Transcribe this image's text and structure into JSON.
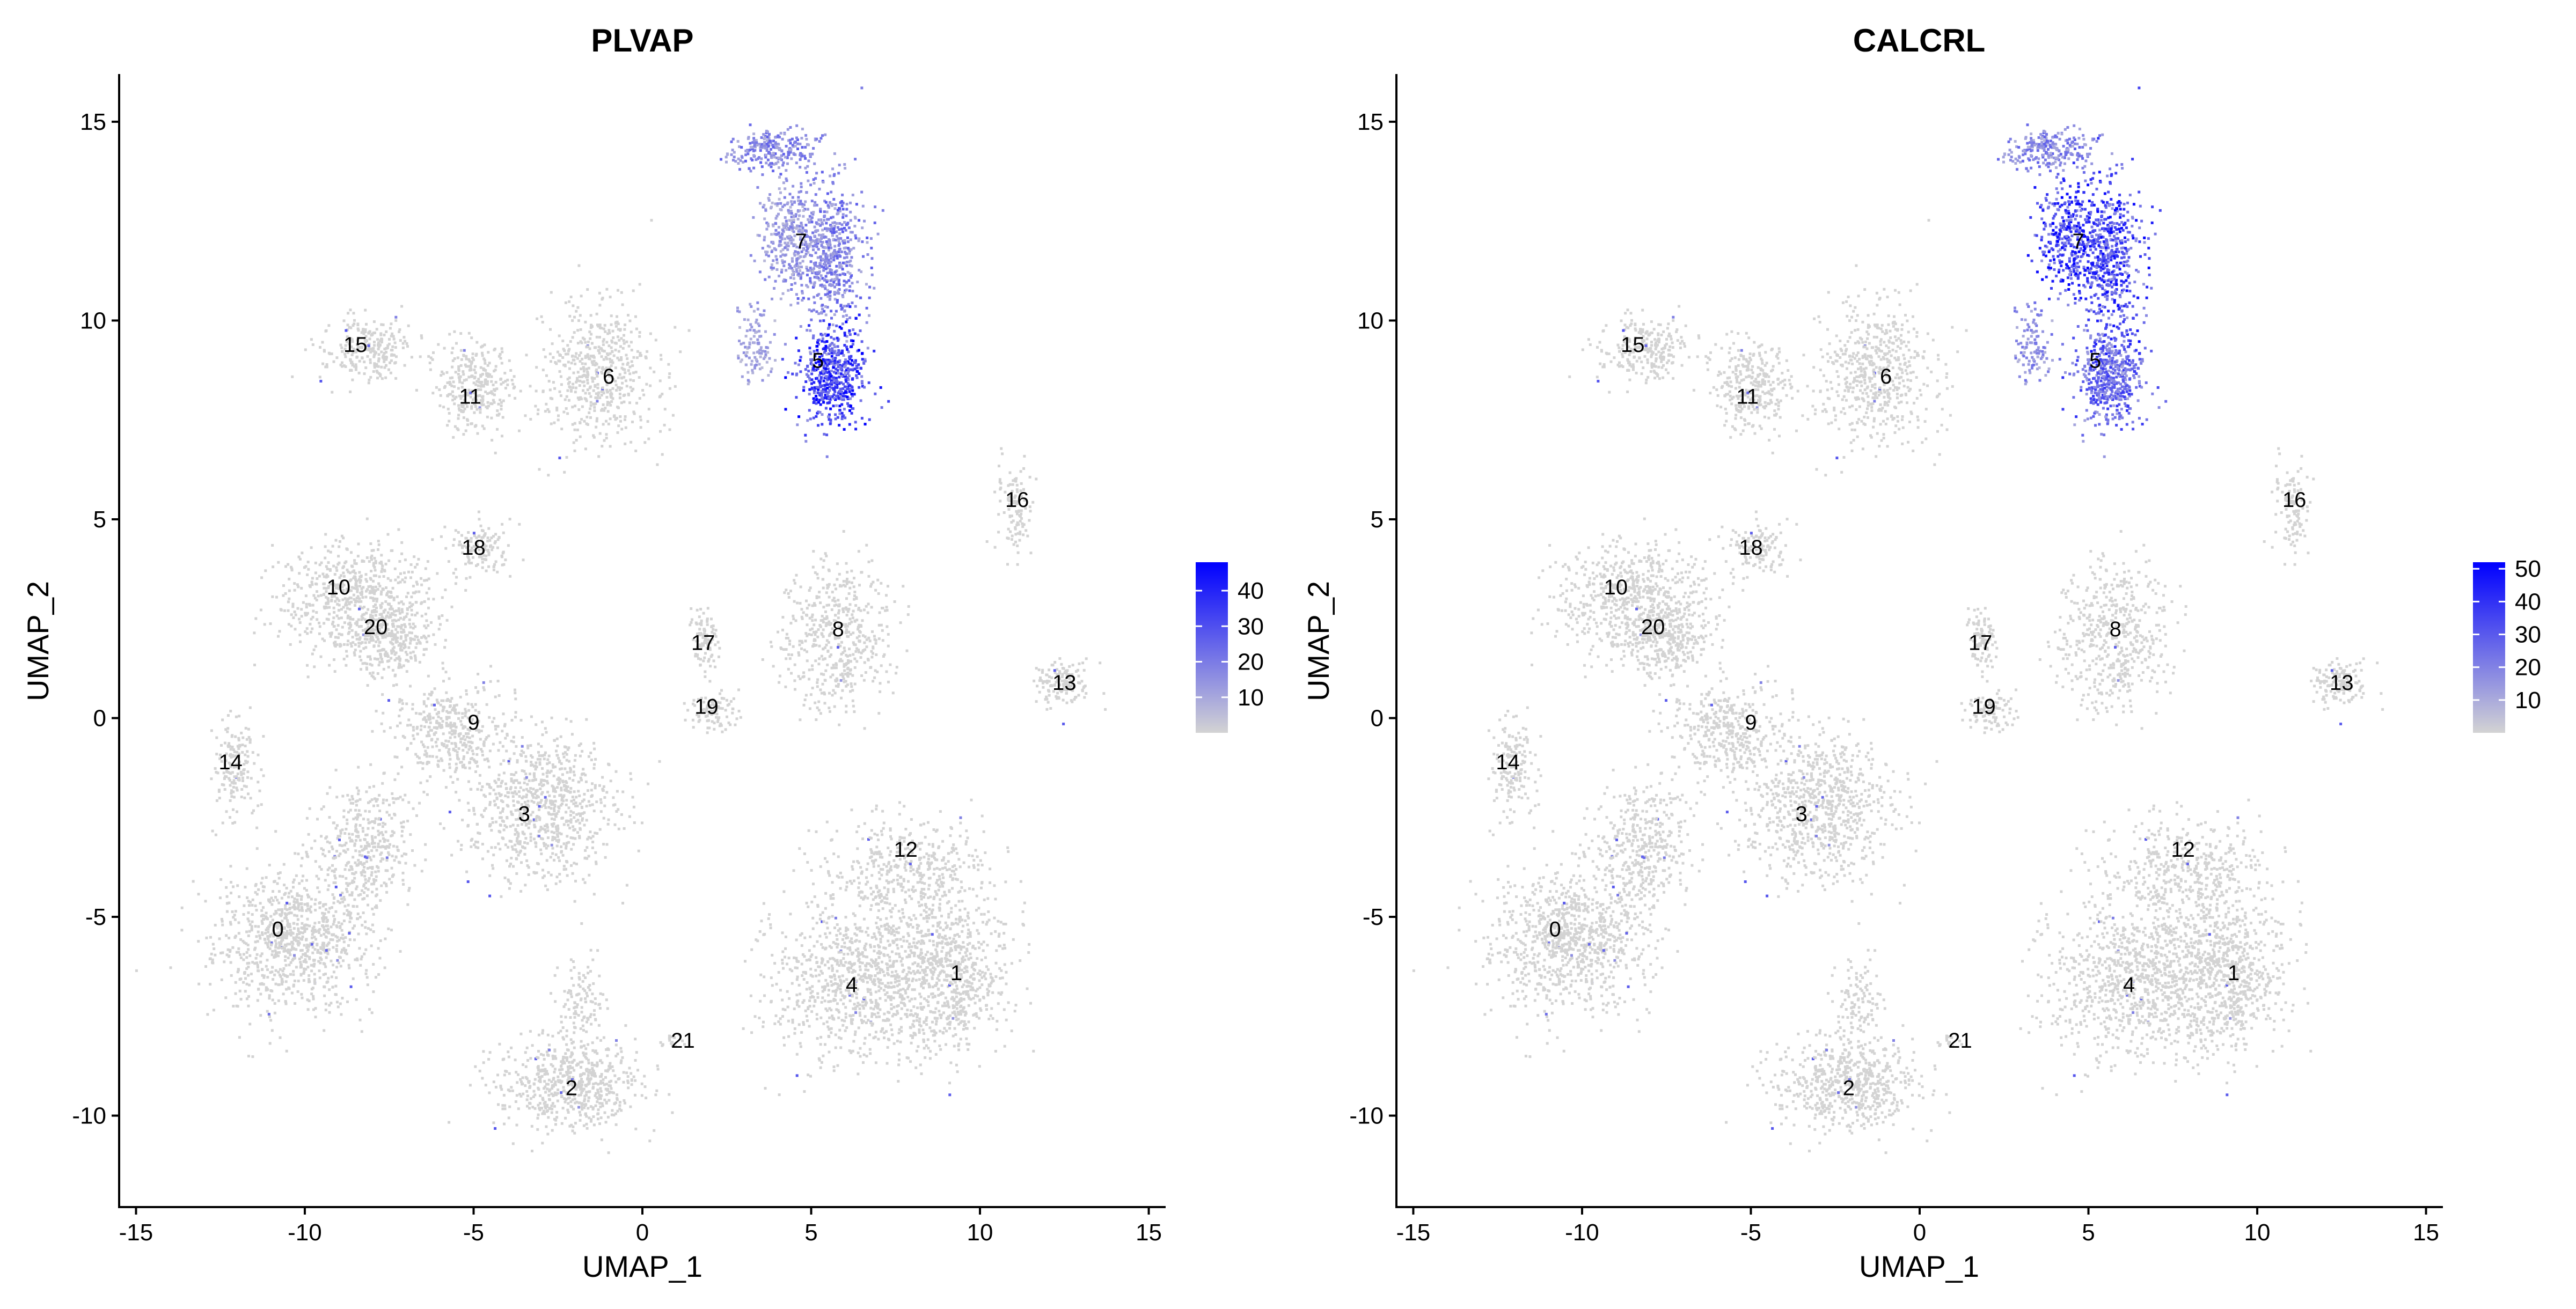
{
  "chart_data": [
    {
      "type": "scatter",
      "title": "PLVAP",
      "xlabel": "UMAP_1",
      "ylabel": "UMAP_2",
      "xlim": [
        -15.5,
        15.5
      ],
      "ylim": [
        -12.3,
        16.2
      ],
      "xticks": [
        -15,
        -10,
        -5,
        0,
        5,
        10,
        15
      ],
      "yticks": [
        -10,
        -5,
        0,
        5,
        10,
        15
      ],
      "grid": false,
      "colorbar": {
        "low_color": "#d3d3d3",
        "high_color": "#0000ff",
        "min": 0,
        "max": 48,
        "ticks": [
          10,
          20,
          30,
          40
        ]
      },
      "high_expression_clusters": [
        "5",
        "7"
      ]
    },
    {
      "type": "scatter",
      "title": "CALCRL",
      "xlabel": "UMAP_1",
      "ylabel": "UMAP_2",
      "xlim": [
        -15.5,
        15.5
      ],
      "ylim": [
        -12.3,
        16.2
      ],
      "xticks": [
        -15,
        -10,
        -5,
        0,
        5,
        10,
        15
      ],
      "yticks": [
        -10,
        -5,
        0,
        5,
        10,
        15
      ],
      "grid": false,
      "colorbar": {
        "low_color": "#d3d3d3",
        "high_color": "#0000ff",
        "min": 0,
        "max": 52,
        "ticks": [
          10,
          20,
          30,
          40,
          50
        ]
      },
      "high_expression_clusters": [
        "7",
        "5"
      ]
    }
  ],
  "clusters": [
    {
      "label": "0",
      "x": -10.8,
      "y": -5.3
    },
    {
      "label": "1",
      "x": 9.3,
      "y": -6.4
    },
    {
      "label": "2",
      "x": -2.1,
      "y": -9.3
    },
    {
      "label": "3",
      "x": -3.5,
      "y": -2.4
    },
    {
      "label": "4",
      "x": 6.2,
      "y": -6.7
    },
    {
      "label": "5",
      "x": 5.2,
      "y": 9.0
    },
    {
      "label": "6",
      "x": -1.0,
      "y": 8.6
    },
    {
      "label": "7",
      "x": 4.7,
      "y": 12.0
    },
    {
      "label": "8",
      "x": 5.8,
      "y": 2.25
    },
    {
      "label": "9",
      "x": -5.0,
      "y": -0.1
    },
    {
      "label": "10",
      "x": -9.0,
      "y": 3.3
    },
    {
      "label": "11",
      "x": -5.1,
      "y": 8.1
    },
    {
      "label": "12",
      "x": 7.8,
      "y": -3.3
    },
    {
      "label": "13",
      "x": 12.5,
      "y": 0.9
    },
    {
      "label": "14",
      "x": -12.2,
      "y": -1.1
    },
    {
      "label": "15",
      "x": -8.5,
      "y": 9.4
    },
    {
      "label": "16",
      "x": 11.1,
      "y": 5.5
    },
    {
      "label": "17",
      "x": 1.8,
      "y": 1.9
    },
    {
      "label": "18",
      "x": -5.0,
      "y": 4.3
    },
    {
      "label": "19",
      "x": 1.9,
      "y": 0.3
    },
    {
      "label": "20",
      "x": -7.9,
      "y": 2.3
    },
    {
      "label": "21",
      "x": 1.2,
      "y": -8.1
    }
  ]
}
